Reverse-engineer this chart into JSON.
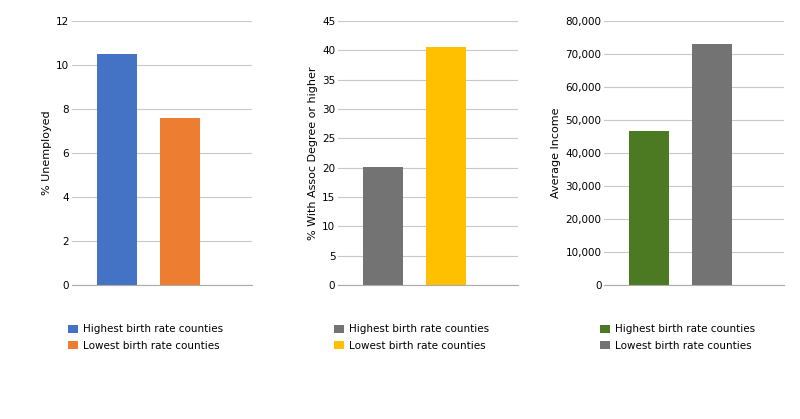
{
  "chart1": {
    "ylabel": "% Unemployed",
    "values": [
      10.5,
      7.6
    ],
    "colors": [
      "#4472C4",
      "#ED7D31"
    ],
    "ylim": [
      0,
      12
    ],
    "yticks": [
      0,
      2,
      4,
      6,
      8,
      10,
      12
    ],
    "legend_labels": [
      "Highest birth rate counties",
      "Lowest birth rate counties"
    ]
  },
  "chart2": {
    "ylabel": "% With Assoc Degree or higher",
    "values": [
      20.1,
      40.5
    ],
    "colors": [
      "#737373",
      "#FFC000"
    ],
    "ylim": [
      0,
      45
    ],
    "yticks": [
      0,
      5,
      10,
      15,
      20,
      25,
      30,
      35,
      40,
      45
    ],
    "legend_labels": [
      "Highest birth rate counties",
      "Lowest birth rate counties"
    ]
  },
  "chart3": {
    "ylabel": "Average Income",
    "values": [
      46500,
      73000
    ],
    "colors": [
      "#4B7A23",
      "#737373"
    ],
    "ylim": [
      0,
      80000
    ],
    "yticks": [
      0,
      10000,
      20000,
      30000,
      40000,
      50000,
      60000,
      70000,
      80000
    ],
    "legend_labels": [
      "Highest birth rate counties",
      "Lowest birth rate counties"
    ]
  },
  "background_color": "#ffffff",
  "grid_color": "#c8c8c8",
  "legend_fontsize": 7.5,
  "ylabel_fontsize": 8,
  "tick_fontsize": 7.5
}
